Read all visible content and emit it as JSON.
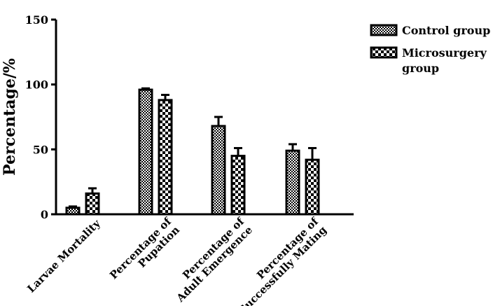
{
  "chart_data": {
    "type": "bar",
    "ylabel": "Percentage/%",
    "ylim": [
      0,
      150
    ],
    "yticks": [
      "0",
      "50",
      "100",
      "150"
    ],
    "categories": [
      [
        "Larvae Mortality"
      ],
      [
        "Percentage of",
        "Pupation"
      ],
      [
        "Percentage of",
        "Adult Emergence"
      ],
      [
        "Percentage of",
        "Successfully Mating"
      ]
    ],
    "series": [
      {
        "name": "Control group",
        "pattern": "fine-check",
        "values": [
          5,
          96,
          68,
          49
        ],
        "errors": [
          1,
          1,
          7,
          5
        ]
      },
      {
        "name": "Microsurgery group",
        "pattern": "coarse-check",
        "values": [
          16,
          88,
          45,
          42
        ],
        "errors": [
          4,
          4,
          6,
          9
        ]
      }
    ],
    "legend": {
      "position": "top-right",
      "labels": [
        [
          "Control group"
        ],
        [
          "Microsurgery",
          "group"
        ]
      ]
    },
    "grid": false,
    "colors": {
      "bar": "#000000",
      "background": "#ffffff"
    }
  }
}
